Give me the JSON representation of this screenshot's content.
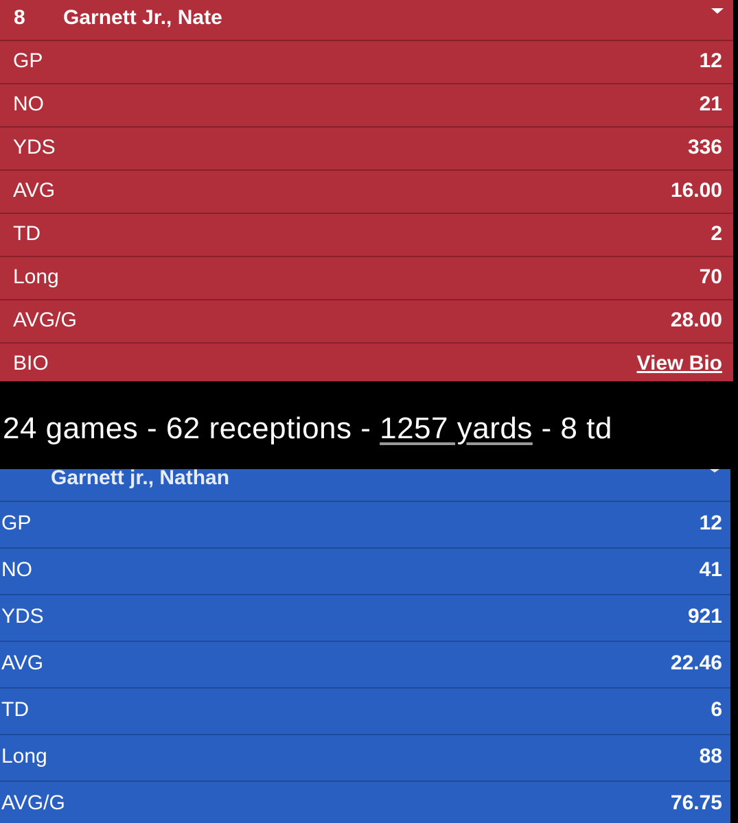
{
  "top_card": {
    "number": "8",
    "name": "Garnett Jr., Nate",
    "rows": [
      {
        "label": "GP",
        "value": "12"
      },
      {
        "label": "NO",
        "value": "21"
      },
      {
        "label": "YDS",
        "value": "336"
      },
      {
        "label": "AVG",
        "value": "16.00"
      },
      {
        "label": "TD",
        "value": "2"
      },
      {
        "label": "Long",
        "value": "70"
      },
      {
        "label": "AVG/G",
        "value": "28.00"
      }
    ],
    "bio_label": "BIO",
    "bio_link": "View Bio"
  },
  "caption": {
    "part1": "24 games - 62 receptions - ",
    "yards": "1257 yards",
    "part2": " - 8 td"
  },
  "bottom_card": {
    "name": "Garnett jr., Nathan",
    "rows": [
      {
        "label": "GP",
        "value": "12"
      },
      {
        "label": "NO",
        "value": "41"
      },
      {
        "label": "YDS",
        "value": "921"
      },
      {
        "label": "AVG",
        "value": "22.46"
      },
      {
        "label": "TD",
        "value": "6"
      },
      {
        "label": "Long",
        "value": "88"
      },
      {
        "label": "AVG/G",
        "value": "76.75"
      }
    ]
  },
  "colors": {
    "top_card_bg": "#b02f3b",
    "bottom_card_bg": "#2a5fc2"
  }
}
